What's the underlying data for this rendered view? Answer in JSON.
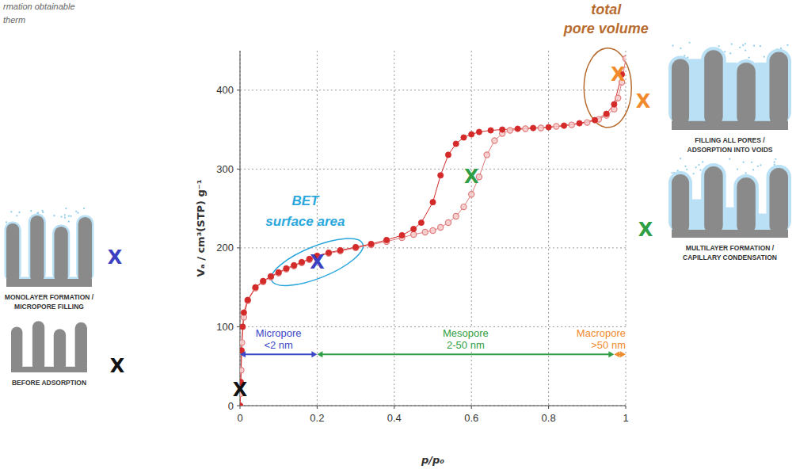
{
  "caption": [
    "rmation obtainable",
    "therm"
  ],
  "chart_data": {
    "type": "scatter",
    "xlabel": "p/p₀",
    "ylabel": "Vₐ / cm³(STP) g⁻¹",
    "xlim": [
      0,
      1
    ],
    "ylim": [
      0,
      450
    ],
    "xticks": [
      0,
      0.2,
      0.4,
      0.6,
      0.8,
      1
    ],
    "yticks": [
      0,
      100,
      200,
      300,
      400
    ],
    "grid": true,
    "series": [
      {
        "color": "#e07b7b",
        "marker": "open",
        "line_style": "solid",
        "x": [
          0,
          0.001,
          0.003,
          0.005,
          0.01,
          0.02,
          0.04,
          0.06,
          0.08,
          0.1,
          0.12,
          0.14,
          0.16,
          0.18,
          0.2,
          0.23,
          0.26,
          0.3,
          0.34,
          0.38,
          0.42,
          0.45,
          0.48,
          0.5,
          0.52,
          0.54,
          0.56,
          0.58,
          0.6,
          0.62,
          0.64,
          0.66,
          0.68,
          0.7,
          0.74,
          0.78,
          0.82,
          0.86,
          0.9,
          0.93,
          0.95,
          0.97,
          0.98,
          0.99,
          1
        ],
        "values": [
          0,
          15,
          45,
          80,
          112,
          133,
          149,
          157,
          163,
          168,
          173,
          177,
          181,
          185,
          189,
          193,
          196,
          200,
          204,
          208,
          213,
          217,
          220,
          222,
          226,
          232,
          240,
          252,
          268,
          290,
          318,
          336,
          345,
          349,
          351,
          352,
          354,
          356,
          359,
          363,
          368,
          376,
          390,
          410,
          440
        ]
      },
      {
        "color": "#d42a2a",
        "marker": "filled",
        "line_style": "solid",
        "x": [
          0,
          0.002,
          0.004,
          0.007,
          0.01,
          0.02,
          0.04,
          0.06,
          0.08,
          0.1,
          0.12,
          0.14,
          0.16,
          0.18,
          0.2,
          0.23,
          0.26,
          0.3,
          0.34,
          0.38,
          0.42,
          0.45,
          0.47,
          0.5,
          0.52,
          0.54,
          0.56,
          0.58,
          0.6,
          0.62,
          0.65,
          0.68,
          0.72,
          0.76,
          0.8,
          0.84,
          0.88,
          0.92,
          0.95,
          0.97,
          0.99
        ],
        "values": [
          0,
          30,
          70,
          100,
          118,
          134,
          150,
          158,
          164,
          169,
          174,
          178,
          182,
          186,
          190,
          194,
          197,
          201,
          205,
          210,
          216,
          224,
          232,
          258,
          292,
          318,
          332,
          340,
          344,
          347,
          349,
          350,
          351,
          352,
          353,
          355,
          358,
          362,
          370,
          382,
          420
        ]
      }
    ],
    "markers": [
      {
        "label": "X",
        "x": 0,
        "y": 20,
        "color": "#111111"
      },
      {
        "label": "X",
        "x": 0.2,
        "y": 182,
        "color": "#3b3fc0",
        "annotation": {
          "text": [
            "BET",
            "surface area"
          ],
          "color": "#2aa7dd"
        }
      },
      {
        "label": "X",
        "x": 0.6,
        "y": 290,
        "color": "#2f9e44"
      },
      {
        "label": "X",
        "x": 0.98,
        "y": 420,
        "color": "#f08a2c",
        "annotation": {
          "text": [
            "total",
            "pore volume"
          ],
          "color": "#b86b2e"
        }
      }
    ],
    "ranges": [
      {
        "label": "Micropore",
        "sublabel": "<2 nm",
        "from": 0,
        "to": 0.2,
        "y": 65,
        "color": "#3b47c8"
      },
      {
        "label": "Mesopore",
        "sublabel": "2-50 nm",
        "from": 0.2,
        "to": 0.97,
        "y": 65,
        "color": "#2f9e44"
      },
      {
        "label": "Macropore",
        "sublabel": ">50 nm",
        "from": 0.97,
        "to": 1,
        "y": 65,
        "color": "#f08a2c"
      }
    ]
  },
  "illustrations": [
    {
      "caption": [
        "MONOLAYER FORMATION /",
        "MICROPORE FILLING"
      ],
      "mark": "X",
      "color": "#3b3fc0"
    },
    {
      "caption": [
        "BEFORE ADSORPTION"
      ],
      "mark": "X",
      "color": "#111111"
    },
    {
      "caption": [
        "FILLING ALL PORES /",
        "ADSORPTION INTO VOIDS"
      ],
      "mark": "X",
      "color": "#f08a2c"
    },
    {
      "caption": [
        "MULTILAYER FORMATION /",
        "CAPILLARY CONDENSATION"
      ],
      "mark": "X",
      "color": "#2f9e44"
    }
  ]
}
